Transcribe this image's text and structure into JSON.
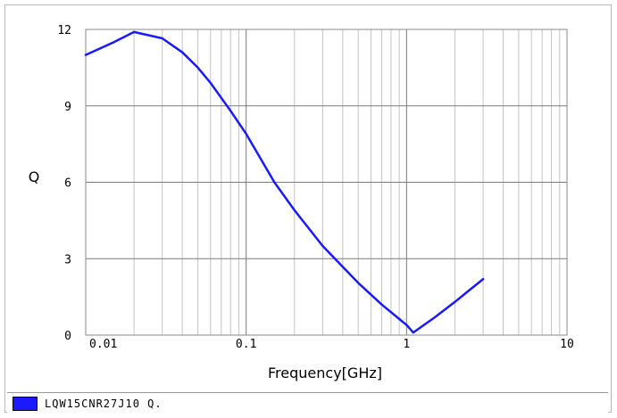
{
  "chart_data": {
    "type": "line",
    "title": "",
    "xlabel": "Frequency[GHz]",
    "ylabel": "Q",
    "xscale": "log",
    "xlim": [
      0.01,
      10
    ],
    "ylim": [
      0,
      12
    ],
    "x_ticks": [
      "0.01",
      "0.1",
      "1",
      "10"
    ],
    "y_ticks": [
      "0",
      "3",
      "6",
      "9",
      "12"
    ],
    "grid": true,
    "legend_position": "bottom-left",
    "series": [
      {
        "name": "LQW15CNR27J10 Q.",
        "color": "#1a1aff",
        "x": [
          0.01,
          0.015,
          0.02,
          0.03,
          0.04,
          0.05,
          0.06,
          0.08,
          0.1,
          0.15,
          0.2,
          0.3,
          0.5,
          0.7,
          1.0,
          1.1,
          1.5,
          2.0,
          2.5,
          3.0
        ],
        "y": [
          11.0,
          11.5,
          11.9,
          11.65,
          11.1,
          10.5,
          9.9,
          8.8,
          7.9,
          6.0,
          4.9,
          3.5,
          2.05,
          1.2,
          0.4,
          0.1,
          0.7,
          1.3,
          1.8,
          2.2
        ]
      }
    ]
  }
}
